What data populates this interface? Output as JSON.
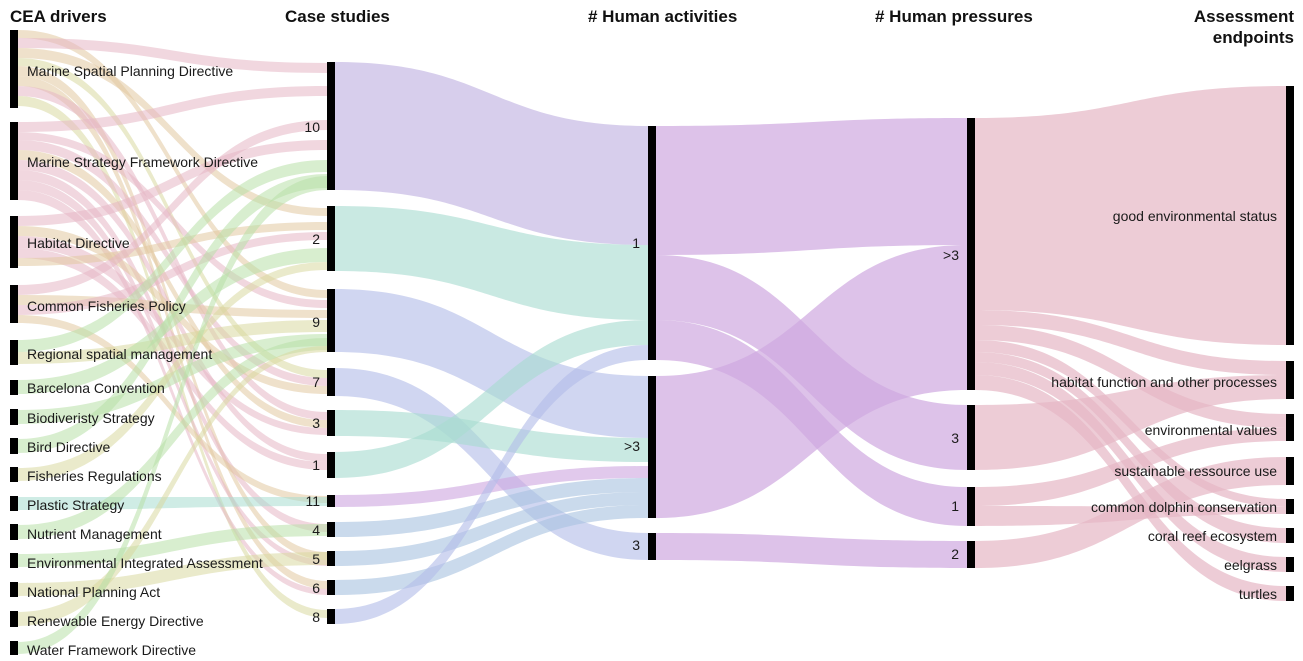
{
  "columns": {
    "drivers": "CEA drivers",
    "cases": "Case studies",
    "activities": "# Human activities",
    "pressures": "# Human pressures",
    "endpoints_line1": "Assessment",
    "endpoints_line2": "endpoints"
  },
  "drivers": [
    "Marine Spatial Planning Directive",
    "Marine Strategy Framework Directive",
    "Habitat Directive",
    "Common Fisheries Policy",
    "Regional spatial management",
    "Barcelona Convention",
    "Biodiveristy Strategy",
    "Bird Directive",
    "Fisheries Regulations",
    "Plastic Strategy",
    "Nutrient Management",
    "Environmental Integrated Assessment",
    "National Planning Act",
    "Renewable Energy Directive",
    "Water Framework Directive"
  ],
  "cases": [
    "10",
    "2",
    "9",
    "7",
    "3",
    "1",
    "11",
    "4",
    "5",
    "6",
    "8"
  ],
  "activities": [
    "1",
    ">3",
    "3"
  ],
  "pressures": [
    ">3",
    "3",
    "1",
    "2"
  ],
  "endpoints": [
    "good environmental status",
    "habitat function and other processes",
    "environmental values",
    "sustainable ressource use",
    "common dolphin conservation",
    "coral reef ecosystem",
    "eelgrass",
    "turtles"
  ],
  "colors": {
    "purple": "#bfb0e0",
    "teal": "#a8dcd0",
    "blue": "#b3bde8",
    "lightblue": "#a9c4e0",
    "violet": "#cfa8e0",
    "pink": "#e6b6c4",
    "tan": "#e2c9a0",
    "green": "#b8e0a8",
    "olive": "#d9d8a0"
  }
}
